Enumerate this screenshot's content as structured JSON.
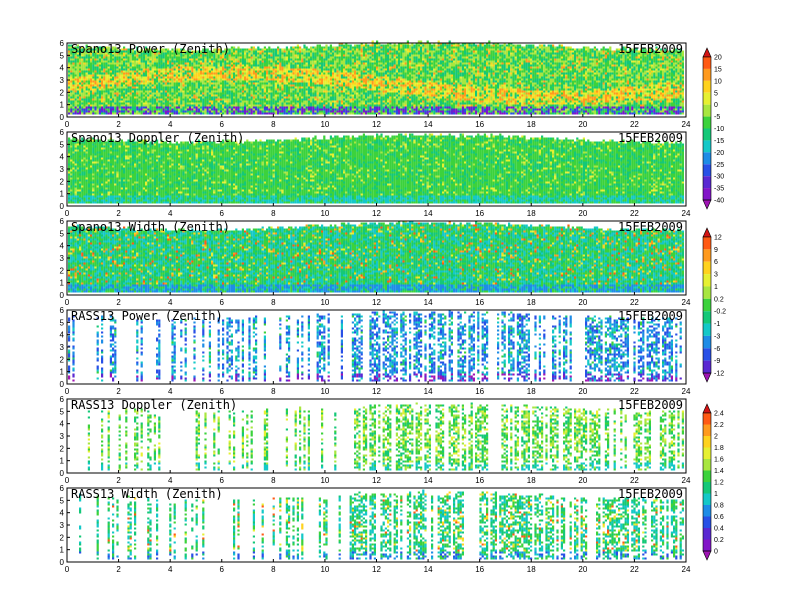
{
  "chart_data": {
    "type": "heatmap",
    "x_axis": {
      "range": [
        0,
        24
      ],
      "ticks": [
        "0",
        "2",
        "4",
        "6",
        "8",
        "10",
        "12",
        "14",
        "16",
        "18",
        "20",
        "22",
        "24"
      ]
    },
    "y_axis": {
      "range": [
        0,
        6
      ],
      "ticks": [
        "0",
        "1",
        "2",
        "3",
        "4",
        "5",
        "6"
      ]
    },
    "date": "15FEB2009",
    "panels": [
      {
        "title": "Spano13 Power (Zenith)",
        "colorbar": 0,
        "fill": "dense",
        "top_km": 5.7
      },
      {
        "title": "Spano13 Doppler (Zenith)",
        "colorbar": 0,
        "fill": "dense",
        "top_km": 5.4
      },
      {
        "title": "Spano13 Width (Zenith)",
        "colorbar": 1,
        "fill": "dense",
        "top_km": 5.5
      },
      {
        "title": "RASS13 Power (Zenith)",
        "colorbar": 1,
        "fill": "sparse",
        "top_km": 5.5
      },
      {
        "title": "RASS13 Doppler (Zenith)",
        "colorbar": 2,
        "fill": "sparse",
        "top_km": 5.2
      },
      {
        "title": "RASS13 Width (Zenith)",
        "colorbar": 2,
        "fill": "sparse",
        "top_km": 5.3
      }
    ],
    "colorbars": [
      {
        "labels": [
          "20",
          "15",
          "10",
          "5",
          "0",
          "-5",
          "-10",
          "-15",
          "-20",
          "-25",
          "-30",
          "-35",
          "-40"
        ],
        "colors": [
          "#d41414",
          "#ff5a14",
          "#ff9a1e",
          "#ffd21e",
          "#e6f032",
          "#a8e640",
          "#3cd23c",
          "#14c878",
          "#14c8c8",
          "#1e8ce6",
          "#2850e6",
          "#5a28d2",
          "#8214c8",
          "#a014b4"
        ]
      },
      {
        "labels": [
          "12",
          "9",
          "6",
          "3",
          "1",
          "0.2",
          "-0.2",
          "-1",
          "-3",
          "-6",
          "-9",
          "-12"
        ],
        "colors": [
          "#d41414",
          "#ff5a14",
          "#ff9a1e",
          "#ffd21e",
          "#e6f032",
          "#a8e640",
          "#3cd23c",
          "#14c878",
          "#14c8c8",
          "#1e8ce6",
          "#2850e6",
          "#5a28d2",
          "#a014b4"
        ]
      },
      {
        "labels": [
          "2.4",
          "2.2",
          "2",
          "1.8",
          "1.6",
          "1.4",
          "1.2",
          "1",
          "0.8",
          "0.6",
          "0.4",
          "0.2",
          "0"
        ],
        "colors": [
          "#d41414",
          "#ff5a14",
          "#ff9a1e",
          "#ffd21e",
          "#e6f032",
          "#a8e640",
          "#3cd23c",
          "#14c878",
          "#14c8c8",
          "#1e8ce6",
          "#2850e6",
          "#5a28d2",
          "#8214c8",
          "#a014b4"
        ]
      }
    ]
  }
}
